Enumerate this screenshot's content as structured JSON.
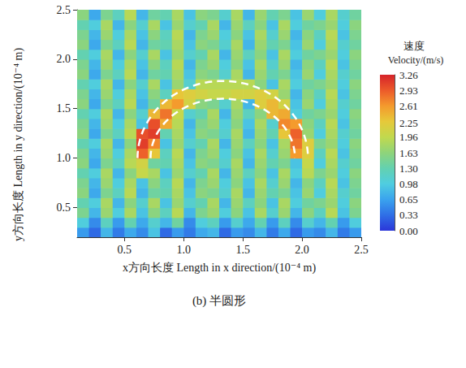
{
  "chart_data": {
    "type": "heatmap",
    "title": "(b) 半圆形",
    "x_label": "x方向长度 Length in x direction/(10⁻⁴ m)",
    "y_label": "y方向长度 Length in y direction/(10⁻⁴ m)",
    "xlim": [
      0.1,
      2.5
    ],
    "ylim": [
      0.2,
      2.5
    ],
    "xticks": [
      0.5,
      {
        "value": 1.0,
        "label": "1.0"
      },
      1.5,
      {
        "value": 2.0,
        "label": "2.0"
      },
      2.5
    ],
    "yticks": [
      0.5,
      {
        "value": 1.0,
        "label": "1.0"
      },
      1.5,
      {
        "value": 2.0,
        "label": "2.0"
      },
      2.5
    ],
    "cells": {
      "x_edges": [
        0.1,
        0.2,
        0.3,
        0.4,
        0.5,
        0.6,
        0.7,
        0.8,
        0.9,
        1.0,
        1.1,
        1.2,
        1.3,
        1.4,
        1.5,
        1.6,
        1.7,
        1.8,
        1.9,
        2.0,
        2.1,
        2.2,
        2.3,
        2.4,
        2.5
      ],
      "y_edges": [
        0.2,
        0.3,
        0.4,
        0.5,
        0.6,
        0.7,
        0.8,
        0.9,
        1.0,
        1.1,
        1.2,
        1.3,
        1.4,
        1.5,
        1.6,
        1.7,
        1.8,
        1.9,
        2.0,
        2.1,
        2.2,
        2.3,
        2.4,
        2.5
      ],
      "values": [
        [
          0.6,
          0.3,
          0.8,
          0.4,
          0.7,
          0.5,
          0.9,
          0.3,
          0.6,
          0.4,
          0.7,
          0.8,
          0.3,
          0.6,
          0.5,
          0.8,
          0.4,
          0.7,
          0.3,
          0.6,
          0.5,
          0.8,
          0.4,
          0.6
        ],
        [
          1.0,
          0.5,
          1.2,
          0.6,
          1.3,
          0.7,
          1.1,
          0.8,
          1.4,
          0.5,
          1.0,
          1.2,
          0.6,
          1.1,
          0.7,
          1.3,
          0.6,
          1.2,
          0.5,
          1.1,
          0.8,
          1.3,
          0.6,
          1.0
        ],
        [
          1.5,
          0.8,
          1.7,
          1.0,
          1.8,
          0.9,
          1.6,
          1.2,
          1.9,
          0.8,
          1.5,
          1.7,
          1.0,
          1.6,
          0.9,
          1.8,
          1.1,
          1.7,
          0.8,
          1.6,
          1.2,
          1.9,
          0.9,
          1.5
        ],
        [
          1.3,
          1.0,
          1.8,
          0.8,
          1.6,
          1.1,
          1.8,
          0.9,
          1.7,
          1.1,
          1.3,
          1.8,
          0.8,
          1.7,
          1.2,
          1.6,
          0.9,
          1.8,
          1.0,
          1.4,
          1.5,
          1.7,
          1.0,
          1.6
        ],
        [
          1.6,
          0.7,
          1.5,
          1.2,
          1.9,
          0.8,
          1.4,
          1.3,
          1.8,
          0.9,
          1.6,
          1.5,
          1.1,
          1.8,
          0.8,
          1.7,
          1.3,
          1.5,
          0.9,
          1.7,
          1.0,
          1.8,
          1.1,
          1.4
        ],
        [
          1.5,
          0.8,
          1.7,
          1.0,
          1.8,
          0.9,
          1.6,
          1.2,
          1.9,
          0.8,
          1.5,
          1.7,
          1.0,
          1.6,
          0.9,
          1.8,
          1.1,
          1.7,
          0.8,
          1.6,
          1.2,
          1.9,
          0.9,
          1.5
        ],
        [
          1.3,
          1.0,
          1.8,
          0.8,
          1.6,
          2.0,
          1.8,
          0.9,
          1.7,
          1.1,
          1.3,
          1.8,
          0.8,
          1.7,
          1.2,
          1.6,
          0.9,
          1.8,
          1.0,
          1.9,
          1.5,
          1.7,
          1.0,
          1.6
        ],
        [
          1.6,
          0.7,
          1.5,
          1.2,
          1.9,
          2.1,
          1.4,
          1.3,
          1.8,
          0.9,
          1.6,
          1.5,
          1.1,
          1.8,
          0.8,
          1.7,
          1.3,
          1.5,
          0.9,
          2.0,
          1.0,
          1.8,
          1.1,
          1.4
        ],
        [
          1.5,
          0.8,
          1.7,
          1.0,
          1.8,
          2.9,
          2.3,
          1.2,
          1.9,
          0.8,
          1.5,
          1.7,
          1.0,
          1.6,
          0.9,
          1.8,
          1.1,
          1.7,
          2.6,
          2.2,
          1.2,
          1.9,
          0.9,
          1.5
        ],
        [
          1.3,
          1.0,
          1.8,
          0.8,
          1.6,
          3.1,
          2.7,
          0.9,
          1.7,
          1.1,
          1.3,
          1.8,
          0.8,
          1.7,
          1.2,
          1.6,
          0.9,
          1.8,
          2.8,
          2.2,
          1.5,
          1.7,
          1.0,
          1.6
        ],
        [
          1.6,
          0.7,
          1.5,
          1.2,
          1.9,
          3.0,
          3.1,
          1.3,
          1.8,
          0.9,
          1.6,
          1.5,
          1.1,
          1.8,
          0.8,
          1.7,
          1.3,
          2.3,
          2.9,
          1.7,
          1.0,
          1.8,
          1.1,
          1.4
        ],
        [
          1.5,
          0.8,
          1.7,
          1.0,
          1.8,
          0.9,
          3.0,
          2.5,
          1.9,
          0.8,
          1.5,
          1.7,
          1.0,
          1.6,
          0.9,
          1.8,
          1.1,
          2.7,
          2.6,
          1.6,
          1.2,
          1.9,
          0.9,
          1.5
        ],
        [
          1.3,
          1.0,
          1.8,
          0.8,
          1.6,
          1.1,
          2.4,
          2.8,
          2.0,
          1.1,
          1.3,
          1.8,
          0.8,
          1.7,
          1.2,
          1.6,
          2.4,
          2.5,
          1.0,
          1.4,
          1.5,
          1.7,
          1.0,
          1.6
        ],
        [
          1.6,
          0.7,
          1.5,
          1.2,
          1.9,
          0.8,
          1.4,
          2.4,
          2.6,
          2.1,
          1.6,
          1.5,
          1.1,
          1.8,
          0.8,
          2.2,
          2.4,
          2.1,
          0.9,
          1.7,
          1.0,
          1.8,
          1.1,
          1.4
        ],
        [
          1.5,
          0.8,
          1.7,
          1.0,
          1.8,
          0.9,
          1.6,
          1.2,
          2.3,
          2.2,
          2.1,
          2.0,
          2.0,
          2.1,
          2.1,
          2.2,
          2.1,
          1.7,
          0.8,
          1.6,
          1.2,
          1.9,
          0.9,
          1.5
        ],
        [
          1.3,
          1.0,
          1.8,
          0.8,
          1.6,
          1.1,
          1.8,
          0.9,
          1.7,
          1.1,
          1.9,
          1.9,
          1.9,
          1.9,
          1.9,
          1.6,
          0.9,
          1.8,
          1.0,
          1.4,
          1.5,
          1.7,
          1.0,
          1.6
        ],
        [
          1.6,
          0.7,
          1.5,
          1.2,
          1.9,
          0.8,
          1.4,
          1.3,
          1.8,
          0.9,
          1.6,
          1.5,
          1.1,
          1.8,
          0.8,
          1.7,
          1.3,
          1.5,
          0.9,
          1.7,
          1.0,
          1.8,
          1.1,
          1.4
        ],
        [
          1.5,
          0.8,
          1.7,
          1.0,
          1.8,
          0.9,
          1.6,
          1.2,
          1.9,
          0.8,
          1.5,
          1.7,
          1.0,
          1.6,
          0.9,
          1.8,
          1.1,
          1.7,
          0.8,
          1.6,
          1.2,
          1.9,
          0.9,
          1.5
        ],
        [
          1.3,
          1.0,
          1.8,
          0.8,
          1.6,
          1.1,
          1.8,
          0.9,
          1.7,
          1.1,
          1.3,
          1.8,
          0.8,
          1.7,
          1.2,
          1.6,
          0.9,
          1.8,
          1.0,
          1.4,
          1.5,
          1.7,
          1.0,
          1.6
        ],
        [
          1.6,
          0.7,
          1.5,
          1.2,
          1.9,
          0.8,
          1.4,
          1.3,
          1.8,
          0.9,
          1.6,
          1.5,
          1.1,
          1.8,
          0.8,
          1.7,
          1.3,
          1.5,
          0.9,
          1.7,
          1.0,
          1.8,
          1.1,
          1.4
        ],
        [
          1.5,
          0.8,
          1.7,
          1.0,
          1.8,
          0.9,
          1.6,
          1.2,
          1.9,
          0.8,
          1.5,
          1.7,
          1.0,
          1.6,
          0.9,
          1.8,
          1.1,
          1.7,
          0.8,
          1.6,
          1.2,
          1.9,
          0.9,
          1.5
        ],
        [
          1.3,
          1.0,
          1.8,
          0.8,
          1.6,
          1.1,
          1.8,
          0.9,
          1.7,
          1.1,
          1.3,
          1.8,
          0.8,
          1.7,
          1.2,
          1.6,
          0.9,
          1.8,
          1.0,
          1.4,
          1.5,
          1.7,
          1.0,
          1.6
        ],
        [
          1.6,
          0.7,
          1.5,
          1.2,
          1.9,
          0.8,
          1.4,
          1.3,
          1.8,
          0.9,
          1.6,
          1.5,
          1.1,
          1.8,
          0.8,
          1.7,
          1.3,
          1.5,
          0.9,
          1.7,
          1.0,
          1.8,
          1.1,
          1.4
        ]
      ]
    },
    "outlines": [
      {
        "center": [
          1.33,
          1.0
        ],
        "rx": 0.72,
        "ry": 0.78
      },
      {
        "center": [
          1.33,
          1.0
        ],
        "rx": 0.61,
        "ry": 0.6
      }
    ],
    "colorbar": {
      "title": [
        "速度",
        "Velocity/(m/s)"
      ],
      "range": [
        0,
        3.26
      ],
      "ticks": [
        {
          "value": 0,
          "label": "0.00"
        },
        0.33,
        0.65,
        0.98,
        {
          "value": 1.3,
          "label": "1.30"
        },
        1.63,
        1.96,
        2.25,
        2.61,
        2.93,
        3.26
      ]
    }
  }
}
